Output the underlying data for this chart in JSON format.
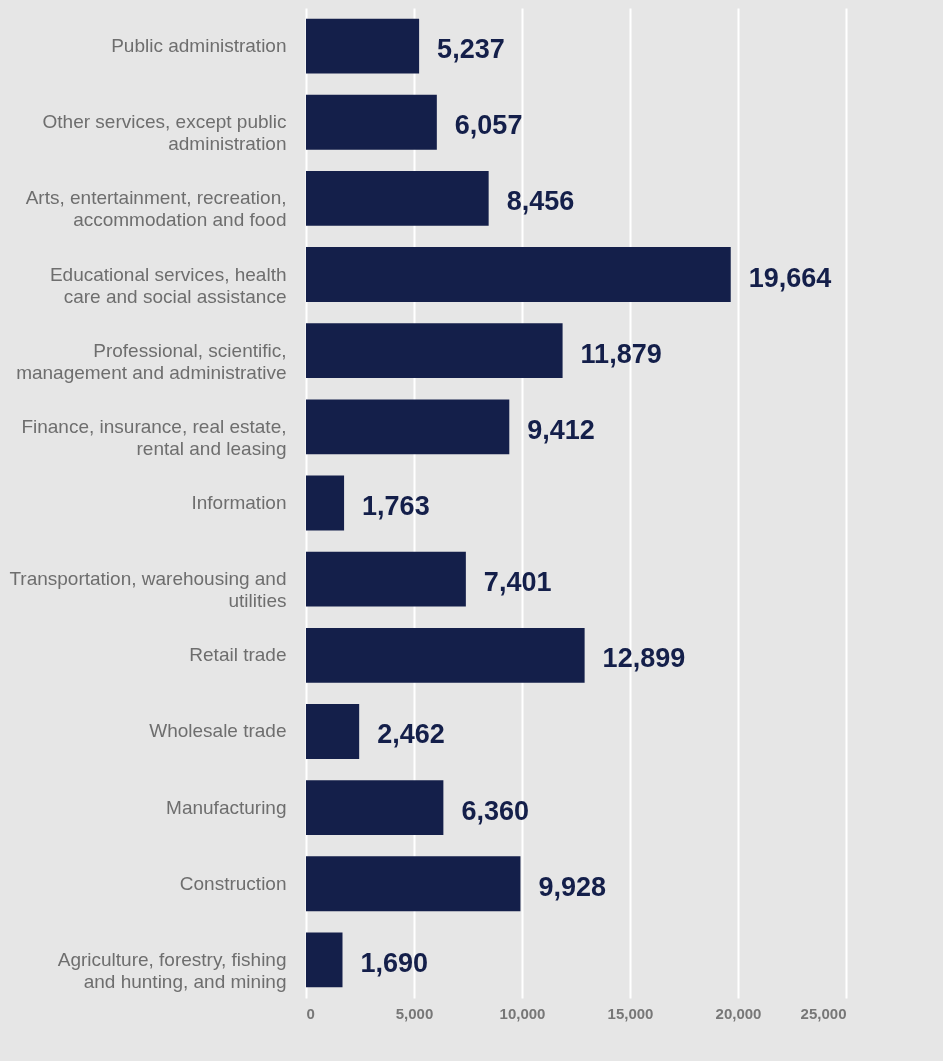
{
  "chart_data": {
    "type": "bar",
    "orientation": "horizontal",
    "categories": [
      "Public administration",
      "Other services, except public administration",
      "Arts, entertainment, recreation, accommodation and food",
      "Educational services, health care and social assistance",
      "Professional, scientific, management and administrative",
      "Finance, insurance, real estate, rental and leasing",
      "Information",
      "Transportation, warehousing and utilities",
      "Retail trade",
      "Wholesale trade",
      "Manufacturing",
      "Construction",
      "Agriculture, forestry, fishing and hunting, and mining"
    ],
    "values": [
      5237,
      6057,
      8456,
      19664,
      11879,
      9412,
      1763,
      7401,
      12899,
      2462,
      6360,
      9928,
      1690
    ],
    "color": "#141f4a",
    "value_labels": [
      "5,237",
      "6,057",
      "8,456",
      "19,664",
      "11,879",
      "9,412",
      "1,763",
      "7,401",
      "12,899",
      "2,462",
      "6,360",
      "9,928",
      "1,690"
    ],
    "xlim": [
      0,
      25000
    ],
    "xticks": [
      0,
      {
        "value": 5000,
        "label": "5,000"
      },
      {
        "value": 10000,
        "label": "10,000"
      },
      {
        "value": 15000,
        "label": "15,000"
      },
      {
        "value": 20000,
        "label": "20,000"
      },
      {
        "value": 25000,
        "label": "25,000"
      }
    ],
    "grid": "x"
  }
}
